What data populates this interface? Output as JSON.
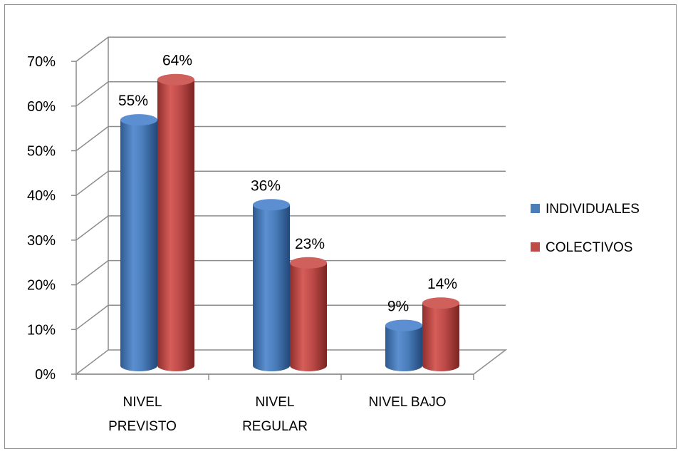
{
  "chart_data": {
    "type": "bar",
    "variant": "3d-cylinder",
    "categories": [
      [
        "NIVEL",
        "PREVISTO"
      ],
      [
        "NIVEL",
        "REGULAR"
      ],
      [
        "NIVEL BAJO"
      ]
    ],
    "series": [
      {
        "name": "INDIVIDUALES",
        "values": [
          55,
          36,
          9
        ],
        "labels": [
          "55%",
          "36%",
          "9%"
        ],
        "color": "#4a7ebb"
      },
      {
        "name": "COLECTIVOS",
        "values": [
          64,
          23,
          14
        ],
        "labels": [
          "64%",
          "23%",
          "14%"
        ],
        "color": "#be4b48"
      }
    ],
    "ylim": [
      0,
      70
    ],
    "yticks": [
      "0%",
      "10%",
      "20%",
      "30%",
      "40%",
      "50%",
      "60%",
      "70%"
    ],
    "grid": true,
    "legend": "right"
  }
}
